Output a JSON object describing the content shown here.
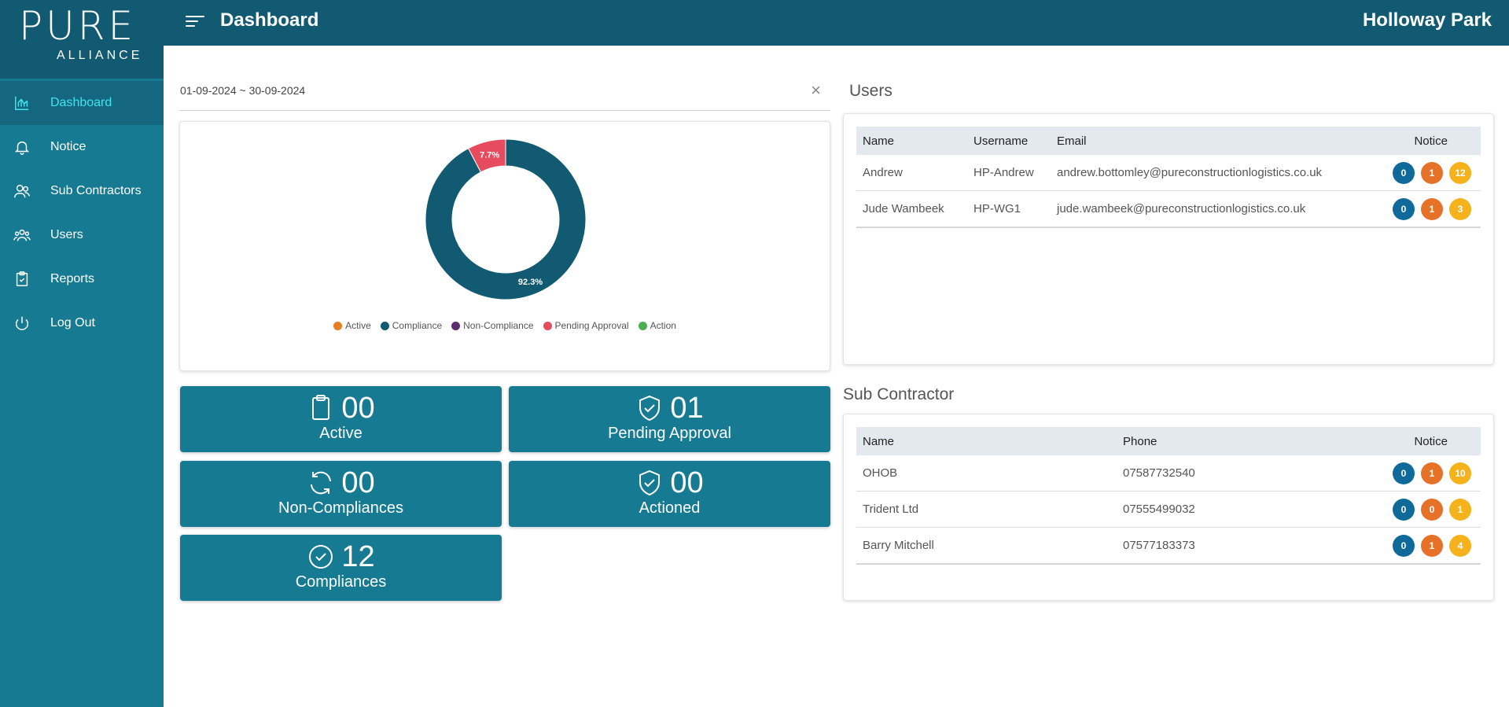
{
  "logo": {
    "main": "PURE",
    "sub": "ALLIANCE"
  },
  "header": {
    "title": "Dashboard",
    "site": "Holloway Park"
  },
  "nav": [
    {
      "label": "Dashboard",
      "icon": "chart-icon"
    },
    {
      "label": "Notice",
      "icon": "bell-icon"
    },
    {
      "label": "Sub Contractors",
      "icon": "users-icon"
    },
    {
      "label": "Users",
      "icon": "group-icon"
    },
    {
      "label": "Reports",
      "icon": "clipboard-check-icon"
    },
    {
      "label": "Log Out",
      "icon": "power-icon"
    }
  ],
  "date_range": {
    "value": "01-09-2024 ~ 30-09-2024",
    "clear": "×"
  },
  "chart_data": {
    "type": "pie",
    "donut": true,
    "labels": [
      "Active",
      "Compliance",
      "Non-Compliance",
      "Pending Approval",
      "Action"
    ],
    "values": [
      0,
      12,
      0,
      1,
      0
    ],
    "percent_labels": {
      "Compliance": "92.3%",
      "Pending Approval": "7.7%"
    },
    "colors": [
      "#e67e22",
      "#115a72",
      "#5b2c6f",
      "#e74c5e",
      "#4caf50"
    ],
    "legend_position": "bottom"
  },
  "stats": {
    "active": {
      "num": "00",
      "label": "Active"
    },
    "pending": {
      "num": "01",
      "label": "Pending Approval"
    },
    "noncomp": {
      "num": "00",
      "label": "Non-Compliances"
    },
    "actioned": {
      "num": "00",
      "label": "Actioned"
    },
    "comp": {
      "num": "12",
      "label": "Compliances"
    }
  },
  "users": {
    "title": "Users",
    "headers": {
      "name": "Name",
      "username": "Username",
      "email": "Email",
      "notice": "Notice"
    },
    "rows": [
      {
        "name": "Andrew",
        "username": "HP-Andrew",
        "email": "andrew.bottomley@pureconstructionlogistics.co.uk",
        "n1": "0",
        "n2": "1",
        "n3": "12"
      },
      {
        "name": "Jude Wambeek",
        "username": "HP-WG1",
        "email": "jude.wambeek@pureconstructionlogistics.co.uk",
        "n1": "0",
        "n2": "1",
        "n3": "3"
      }
    ]
  },
  "subs": {
    "title": "Sub Contractor",
    "headers": {
      "name": "Name",
      "phone": "Phone",
      "notice": "Notice"
    },
    "rows": [
      {
        "name": "OHOB",
        "phone": "07587732540",
        "n1": "0",
        "n2": "1",
        "n3": "10"
      },
      {
        "name": "Trident Ltd",
        "phone": "07555499032",
        "n1": "0",
        "n2": "0",
        "n3": "1"
      },
      {
        "name": "Barry Mitchell",
        "phone": "07577183373",
        "n1": "0",
        "n2": "1",
        "n3": "4"
      }
    ]
  },
  "badge_colors": {
    "n1": "#0f6a9a",
    "n2": "#e6722a",
    "n3": "#f5b21b"
  }
}
